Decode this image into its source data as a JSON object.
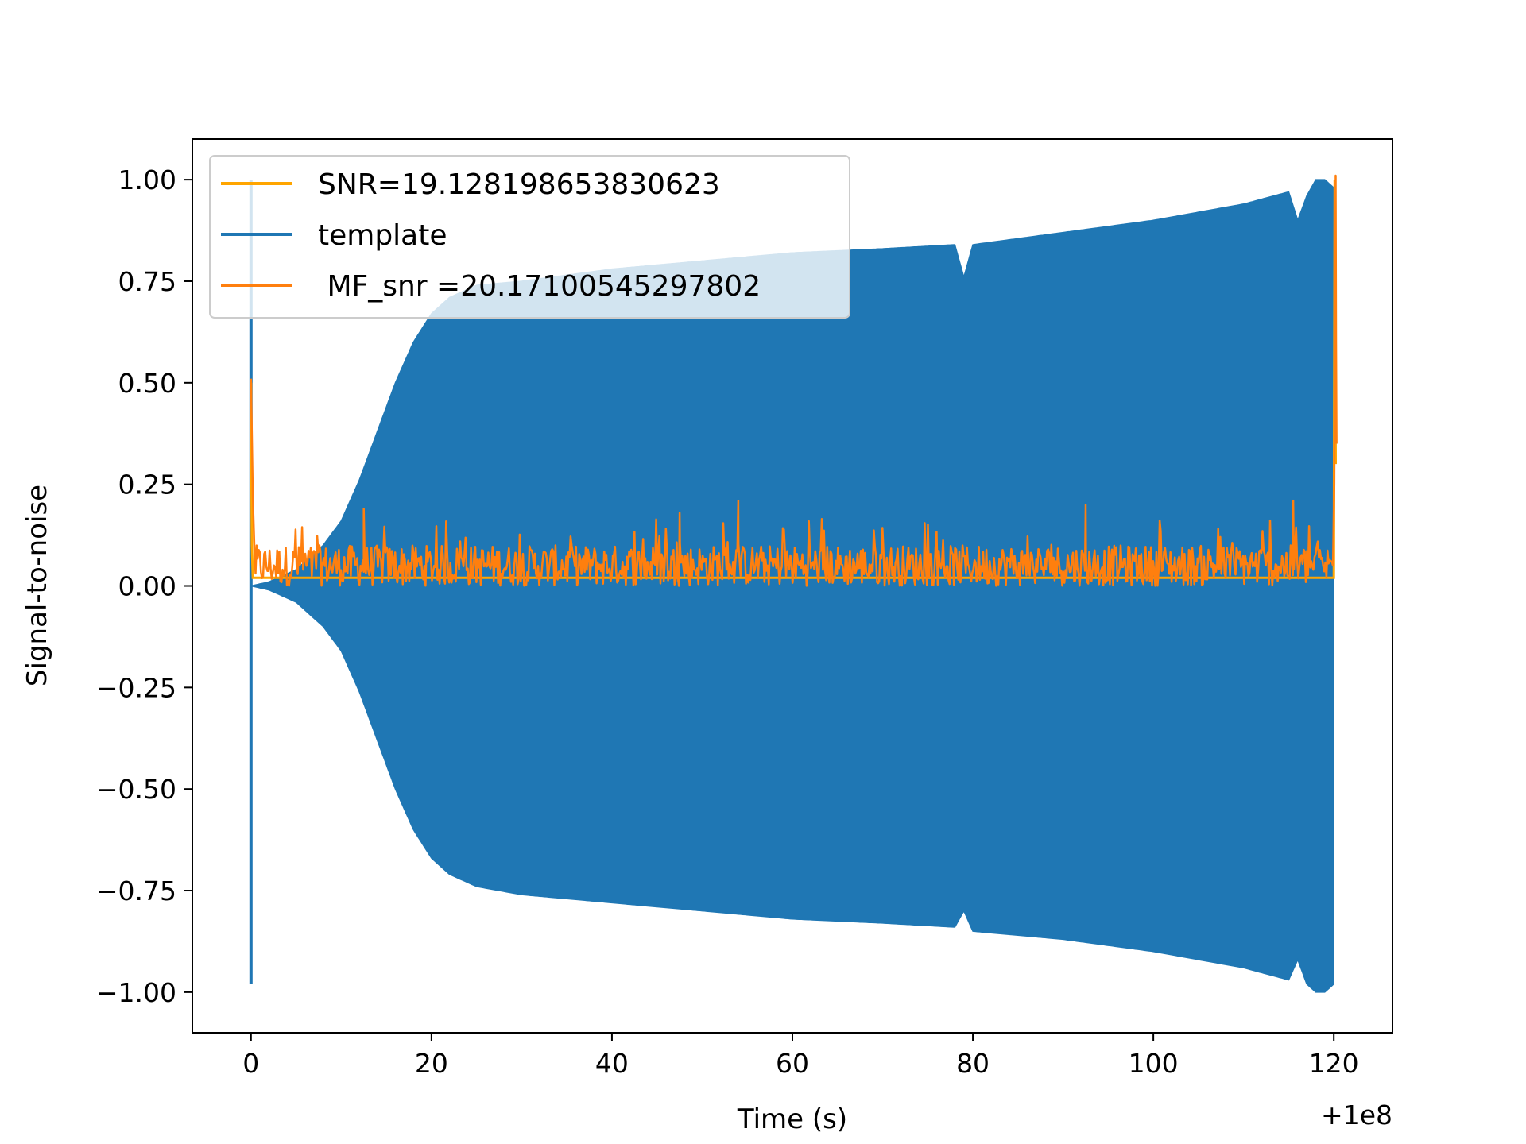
{
  "chart_data": {
    "type": "line",
    "xlabel": "Time (s)",
    "ylabel": "Signal-to-noise",
    "x_offset_label": "+1e8",
    "xlim": [
      -6.5,
      126.5
    ],
    "ylim": [
      -1.1,
      1.1
    ],
    "xticks": [
      0,
      20,
      40,
      60,
      80,
      100,
      120
    ],
    "xtick_labels": [
      "0",
      "20",
      "40",
      "60",
      "80",
      "100",
      "120"
    ],
    "yticks": [
      1.0,
      0.75,
      0.5,
      0.25,
      0.0,
      -0.25,
      -0.5,
      -0.75,
      -1.0
    ],
    "ytick_labels": [
      "1.00",
      "0.75",
      "0.50",
      "0.25",
      "0.00",
      "−0.25",
      "−0.50",
      "−0.75",
      "−1.00"
    ],
    "legend_position": "upper-left",
    "grid": false,
    "series": [
      {
        "name": "SNR=19.128198653830623",
        "color": "#ffa500",
        "kind": "line",
        "x": [
          0,
          0.1,
          0.2,
          120,
          120.1,
          120.2
        ],
        "y": [
          0.5,
          0.1,
          0.02,
          0.02,
          1.0,
          0.3
        ]
      },
      {
        "name": "template",
        "color": "#1f77b4",
        "kind": "oscillation-envelope",
        "envelope": {
          "x": [
            0,
            2,
            5,
            8,
            10,
            12,
            14,
            16,
            18,
            20,
            22,
            25,
            30,
            40,
            50,
            60,
            70,
            78,
            79,
            80,
            90,
            100,
            110,
            115,
            116,
            117,
            118,
            119,
            120
          ],
          "upper": [
            0.0,
            0.01,
            0.04,
            0.1,
            0.16,
            0.26,
            0.38,
            0.5,
            0.6,
            0.67,
            0.71,
            0.74,
            0.75,
            0.78,
            0.8,
            0.82,
            0.83,
            0.84,
            0.76,
            0.84,
            0.87,
            0.9,
            0.94,
            0.97,
            0.9,
            0.96,
            1.0,
            1.0,
            0.98
          ],
          "lower": [
            0.0,
            -0.01,
            -0.04,
            -0.1,
            -0.16,
            -0.26,
            -0.38,
            -0.5,
            -0.6,
            -0.67,
            -0.71,
            -0.74,
            -0.76,
            -0.78,
            -0.8,
            -0.82,
            -0.83,
            -0.84,
            -0.8,
            -0.85,
            -0.87,
            -0.9,
            -0.94,
            -0.97,
            -0.92,
            -0.98,
            -1.0,
            -1.0,
            -0.98
          ]
        },
        "spike_at_start": {
          "x": 0,
          "y_max": 1.0,
          "y_min": -0.98
        }
      },
      {
        "name": " MF_snr =20.17100545297802",
        "color": "#ff7f0e",
        "kind": "noise",
        "baseline": 0.05,
        "typical_range": [
          0.0,
          0.15
        ],
        "peaks": [
          {
            "x": 0.0,
            "y": 0.51
          },
          {
            "x": 12.5,
            "y": 0.19
          },
          {
            "x": 47.5,
            "y": 0.18
          },
          {
            "x": 54,
            "y": 0.21
          },
          {
            "x": 92.5,
            "y": 0.2
          },
          {
            "x": 115.5,
            "y": 0.21
          },
          {
            "x": 120.2,
            "y": 1.01
          }
        ],
        "x_range": [
          0,
          120.3
        ]
      }
    ]
  }
}
